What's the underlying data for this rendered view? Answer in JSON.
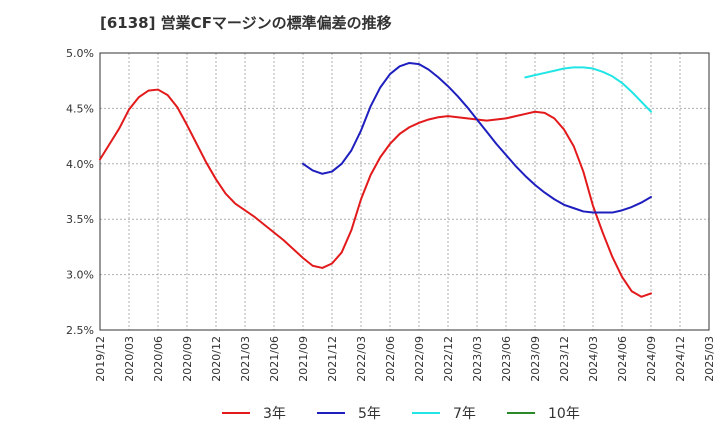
{
  "chart_data": {
    "type": "line",
    "title": "[6138]  営業CFマージンの標準偏差の推移",
    "xlabel": "",
    "ylabel": "",
    "ylim": [
      0.025,
      0.05
    ],
    "grid": true,
    "legend_position": "bottom",
    "categories": [
      "2019/12",
      "2020/03",
      "2020/06",
      "2020/09",
      "2020/12",
      "2021/03",
      "2021/06",
      "2021/09",
      "2021/12",
      "2022/03",
      "2022/06",
      "2022/09",
      "2022/12",
      "2023/03",
      "2023/06",
      "2023/09",
      "2023/12",
      "2024/03",
      "2024/06",
      "2024/09",
      "2024/12",
      "2025/03"
    ],
    "y_ticks": [
      "5.0%",
      "4.5%",
      "4.0%",
      "3.5%",
      "3.0%",
      "2.5%"
    ],
    "y_tick_values": [
      0.05,
      0.045,
      0.04,
      0.035,
      0.03,
      0.025
    ],
    "series": [
      {
        "name": "3年",
        "color": "#e31a1c",
        "points": [
          [
            "2019/12",
            0.0404
          ],
          [
            "2020/01",
            0.0418
          ],
          [
            "2020/02",
            0.0432
          ],
          [
            "2020/03",
            0.0449
          ],
          [
            "2020/04",
            0.046
          ],
          [
            "2020/05",
            0.0466
          ],
          [
            "2020/06",
            0.0467
          ],
          [
            "2020/07",
            0.0462
          ],
          [
            "2020/08",
            0.0451
          ],
          [
            "2020/09",
            0.0435
          ],
          [
            "2020/10",
            0.0418
          ],
          [
            "2020/11",
            0.0401
          ],
          [
            "2020/12",
            0.0386
          ],
          [
            "2021/01",
            0.0373
          ],
          [
            "2021/02",
            0.0364
          ],
          [
            "2021/03",
            0.0358
          ],
          [
            "2021/04",
            0.0352
          ],
          [
            "2021/05",
            0.0345
          ],
          [
            "2021/06",
            0.0338
          ],
          [
            "2021/07",
            0.0331
          ],
          [
            "2021/08",
            0.0323
          ],
          [
            "2021/09",
            0.0315
          ],
          [
            "2021/10",
            0.0308
          ],
          [
            "2021/11",
            0.0306
          ],
          [
            "2021/12",
            0.031
          ],
          [
            "2022/01",
            0.032
          ],
          [
            "2022/02",
            0.034
          ],
          [
            "2022/03",
            0.0368
          ],
          [
            "2022/04",
            0.039
          ],
          [
            "2022/05",
            0.0406
          ],
          [
            "2022/06",
            0.0418
          ],
          [
            "2022/07",
            0.0427
          ],
          [
            "2022/08",
            0.0433
          ],
          [
            "2022/09",
            0.0437
          ],
          [
            "2022/10",
            0.044
          ],
          [
            "2022/11",
            0.0442
          ],
          [
            "2022/12",
            0.0443
          ],
          [
            "2023/01",
            0.0442
          ],
          [
            "2023/02",
            0.0441
          ],
          [
            "2023/03",
            0.044
          ],
          [
            "2023/04",
            0.0439
          ],
          [
            "2023/05",
            0.044
          ],
          [
            "2023/06",
            0.0441
          ],
          [
            "2023/07",
            0.0443
          ],
          [
            "2023/08",
            0.0445
          ],
          [
            "2023/09",
            0.0447
          ],
          [
            "2023/10",
            0.0446
          ],
          [
            "2023/11",
            0.0441
          ],
          [
            "2023/12",
            0.0431
          ],
          [
            "2024/01",
            0.0416
          ],
          [
            "2024/02",
            0.0393
          ],
          [
            "2024/03",
            0.0362
          ],
          [
            "2024/04",
            0.0338
          ],
          [
            "2024/05",
            0.0316
          ],
          [
            "2024/06",
            0.0298
          ],
          [
            "2024/07",
            0.0285
          ],
          [
            "2024/08",
            0.028
          ],
          [
            "2024/09",
            0.0283
          ]
        ]
      },
      {
        "name": "5年",
        "color": "#1f1fbf",
        "points": [
          [
            "2021/09",
            0.04
          ],
          [
            "2021/10",
            0.0394
          ],
          [
            "2021/11",
            0.0391
          ],
          [
            "2021/12",
            0.0393
          ],
          [
            "2022/01",
            0.04
          ],
          [
            "2022/02",
            0.0412
          ],
          [
            "2022/03",
            0.043
          ],
          [
            "2022/04",
            0.0452
          ],
          [
            "2022/05",
            0.0469
          ],
          [
            "2022/06",
            0.0481
          ],
          [
            "2022/07",
            0.0488
          ],
          [
            "2022/08",
            0.0491
          ],
          [
            "2022/09",
            0.049
          ],
          [
            "2022/10",
            0.0485
          ],
          [
            "2022/11",
            0.0478
          ],
          [
            "2022/12",
            0.047
          ],
          [
            "2023/01",
            0.0461
          ],
          [
            "2023/02",
            0.0451
          ],
          [
            "2023/03",
            0.044
          ],
          [
            "2023/04",
            0.0429
          ],
          [
            "2023/05",
            0.0418
          ],
          [
            "2023/06",
            0.0408
          ],
          [
            "2023/07",
            0.0398
          ],
          [
            "2023/08",
            0.0389
          ],
          [
            "2023/09",
            0.0381
          ],
          [
            "2023/10",
            0.0374
          ],
          [
            "2023/11",
            0.0368
          ],
          [
            "2023/12",
            0.0363
          ],
          [
            "2024/01",
            0.036
          ],
          [
            "2024/02",
            0.0357
          ],
          [
            "2024/03",
            0.0356
          ],
          [
            "2024/04",
            0.0356
          ],
          [
            "2024/05",
            0.0356
          ],
          [
            "2024/06",
            0.0358
          ],
          [
            "2024/07",
            0.0361
          ],
          [
            "2024/08",
            0.0365
          ],
          [
            "2024/09",
            0.037
          ]
        ]
      },
      {
        "name": "7年",
        "color": "#22e5e5",
        "points": [
          [
            "2023/08",
            0.0478
          ],
          [
            "2023/09",
            0.048
          ],
          [
            "2023/10",
            0.0482
          ],
          [
            "2023/11",
            0.0484
          ],
          [
            "2023/12",
            0.0486
          ],
          [
            "2024/01",
            0.0487
          ],
          [
            "2024/02",
            0.0487
          ],
          [
            "2024/03",
            0.0486
          ],
          [
            "2024/04",
            0.0483
          ],
          [
            "2024/05",
            0.0479
          ],
          [
            "2024/06",
            0.0473
          ],
          [
            "2024/07",
            0.0465
          ],
          [
            "2024/08",
            0.0456
          ],
          [
            "2024/09",
            0.0447
          ]
        ]
      },
      {
        "name": "10年",
        "color": "#2a8a2a",
        "points": []
      }
    ]
  }
}
